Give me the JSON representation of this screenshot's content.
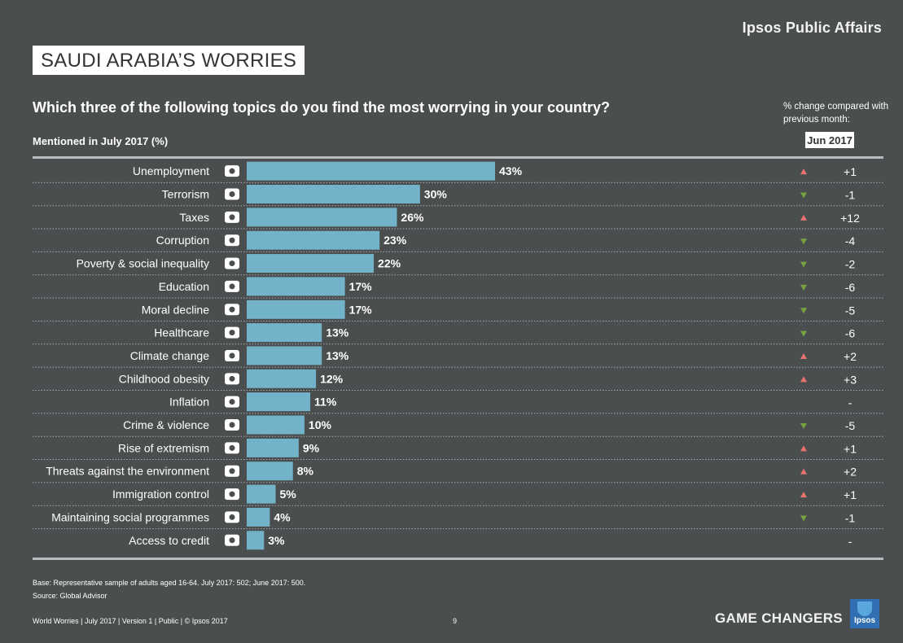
{
  "header": {
    "brand": "Ipsos Public Affairs",
    "title": "SAUDI ARABIA’S WORRIES",
    "question": "Which three of the following topics do you find the most worrying in your country?",
    "mentioned_label": "Mentioned in July 2017 (%)",
    "change_note": "% change compared with previous month:",
    "change_period": "Jun 2017"
  },
  "chart_data": {
    "type": "bar",
    "orientation": "horizontal",
    "categories": [
      "Unemployment",
      "Terrorism",
      "Taxes",
      "Corruption",
      "Poverty & social inequality",
      "Education",
      "Moral decline",
      "Healthcare",
      "Climate change",
      "Childhood obesity",
      "Inflation",
      "Crime & violence",
      "Rise of extremism",
      "Threats against the environment",
      "Immigration control",
      "Maintaining social programmes",
      "Access to credit"
    ],
    "values": [
      43,
      30,
      26,
      23,
      22,
      17,
      17,
      13,
      13,
      12,
      11,
      10,
      9,
      8,
      5,
      4,
      3
    ],
    "value_labels": [
      "43%",
      "30%",
      "26%",
      "23%",
      "22%",
      "17%",
      "17%",
      "13%",
      "13%",
      "12%",
      "11%",
      "10%",
      "9%",
      "8%",
      "5%",
      "4%",
      "3%"
    ],
    "changes": [
      "+1",
      "-1",
      "+12",
      "-4",
      "-2",
      "-6",
      "-5",
      "-6",
      "+2",
      "+3",
      "-",
      "-5",
      "+1",
      "+2",
      "+1",
      "-1",
      "-"
    ],
    "icons": [
      "megaphone-icon",
      "crossed-weapons-icon",
      "tax-money-icon",
      "money-bag-icon",
      "person-icon",
      "graduation-cap-icon",
      "moral-decline-icon",
      "nurse-cap-icon",
      "burning-globe-icon",
      "obese-child-icon",
      "rising-chart-icon",
      "gun-icon",
      "masked-face-icon",
      "polluted-swan-icon",
      "luggage-icon",
      "social-support-icon",
      "credit-card-icon"
    ],
    "xlim": [
      0,
      43
    ],
    "bar_color": "#73b3c9",
    "up_color": "#e8736f",
    "down_color": "#76a33f"
  },
  "footer": {
    "base": "Base: Representative sample of adults aged 16-64. July 2017: 502; June 2017: 500.",
    "source": "Source: Global Advisor",
    "meta": "World Worries | July 2017 | Version 1 | Public | © Ipsos 2017",
    "page_number": "9",
    "tagline": "GAME CHANGERS",
    "logo_text": "Ipsos"
  }
}
